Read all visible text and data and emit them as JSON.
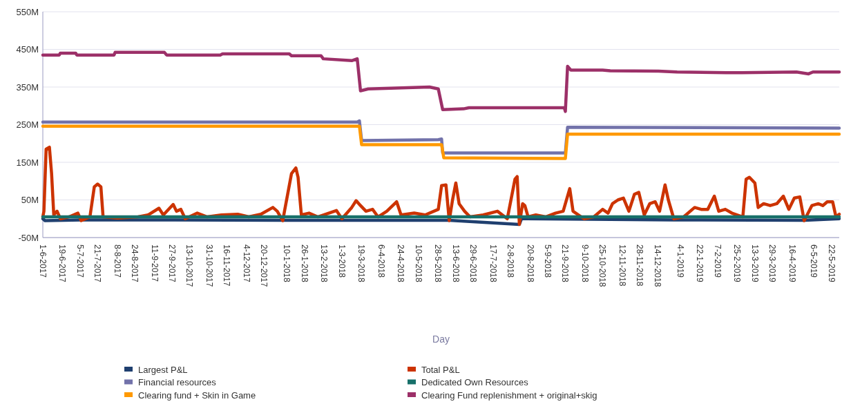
{
  "chart_data": {
    "type": "line",
    "xlabel": "Day",
    "grid": "y",
    "legend": "bottom",
    "line_style": "solid",
    "marker": "none",
    "xlim": [
      "2017-06-01",
      "2019-05-29"
    ],
    "ylim": [
      -50,
      550
    ],
    "yticks": [
      {
        "value": -50,
        "label": "-50M"
      },
      {
        "value": 50,
        "label": "50M"
      },
      {
        "value": 150,
        "label": "150M"
      },
      {
        "value": 250,
        "label": "250M"
      },
      {
        "value": 350,
        "label": "350M"
      },
      {
        "value": 450,
        "label": "450M"
      },
      {
        "value": 550,
        "label": "550M"
      }
    ],
    "xticks": [
      {
        "value": "2017-06-01",
        "label": "1-6-2017"
      },
      {
        "value": "2017-06-19",
        "label": "19-6-2017"
      },
      {
        "value": "2017-07-05",
        "label": "5-7-2017"
      },
      {
        "value": "2017-07-21",
        "label": "21-7-2017"
      },
      {
        "value": "2017-08-08",
        "label": "8-8-2017"
      },
      {
        "value": "2017-08-24",
        "label": "24-8-2017"
      },
      {
        "value": "2017-09-11",
        "label": "11-9-2017"
      },
      {
        "value": "2017-09-27",
        "label": "27-9-2017"
      },
      {
        "value": "2017-10-13",
        "label": "13-10-2017"
      },
      {
        "value": "2017-10-31",
        "label": "31-10-2017"
      },
      {
        "value": "2017-11-16",
        "label": "16-11-2017"
      },
      {
        "value": "2017-12-04",
        "label": "4-12-2017"
      },
      {
        "value": "2017-12-20",
        "label": "20-12-2017"
      },
      {
        "value": "2018-01-10",
        "label": "10-1-2018"
      },
      {
        "value": "2018-01-26",
        "label": "26-1-2018"
      },
      {
        "value": "2018-02-13",
        "label": "13-2-2018"
      },
      {
        "value": "2018-03-01",
        "label": "1-3-2018"
      },
      {
        "value": "2018-03-19",
        "label": "19-3-2018"
      },
      {
        "value": "2018-04-06",
        "label": "6-4-2018"
      },
      {
        "value": "2018-04-24",
        "label": "24-4-2018"
      },
      {
        "value": "2018-05-10",
        "label": "10-5-2018"
      },
      {
        "value": "2018-05-28",
        "label": "28-5-2018"
      },
      {
        "value": "2018-06-13",
        "label": "13-6-2018"
      },
      {
        "value": "2018-06-29",
        "label": "29-6-2018"
      },
      {
        "value": "2018-07-17",
        "label": "17-7-2018"
      },
      {
        "value": "2018-08-02",
        "label": "2-8-2018"
      },
      {
        "value": "2018-08-20",
        "label": "20-8-2018"
      },
      {
        "value": "2018-09-05",
        "label": "5-9-2018"
      },
      {
        "value": "2018-09-21",
        "label": "21-9-2018"
      },
      {
        "value": "2018-10-09",
        "label": "9-10-2018"
      },
      {
        "value": "2018-10-25",
        "label": "25-10-2018"
      },
      {
        "value": "2018-11-12",
        "label": "12-11-2018"
      },
      {
        "value": "2018-11-28",
        "label": "28-11-2018"
      },
      {
        "value": "2018-12-14",
        "label": "14-12-2018"
      },
      {
        "value": "2019-01-04",
        "label": "4-1-2019"
      },
      {
        "value": "2019-01-22",
        "label": "22-1-2019"
      },
      {
        "value": "2019-02-07",
        "label": "7-2-2019"
      },
      {
        "value": "2019-02-25",
        "label": "25-2-2019"
      },
      {
        "value": "2019-03-13",
        "label": "13-3-2019"
      },
      {
        "value": "2019-03-29",
        "label": "29-3-2019"
      },
      {
        "value": "2019-04-16",
        "label": "16-4-2019"
      },
      {
        "value": "2019-05-06",
        "label": "6-5-2019"
      },
      {
        "value": "2019-05-22",
        "label": "22-5-2019"
      }
    ],
    "series": [
      {
        "name": "Largest P&L",
        "color": "#1f3f6f",
        "x": [
          "2017-06-01",
          "2017-06-03",
          "2017-07-06",
          "2017-09-30",
          "2018-01-06",
          "2018-06-07",
          "2018-08-10",
          "2018-08-12",
          "2018-12-29",
          "2019-04-27",
          "2019-05-29"
        ],
        "values": [
          0,
          -5,
          -3,
          -3,
          -4,
          -4,
          -15,
          0,
          -3,
          -4,
          0
        ]
      },
      {
        "name": "Total P&L",
        "color": "#cc3300",
        "x": [
          "2017-06-01",
          "2017-06-02",
          "2017-06-04",
          "2017-06-07",
          "2017-06-09",
          "2017-06-11",
          "2017-06-14",
          "2017-06-17",
          "2017-06-25",
          "2017-07-03",
          "2017-07-06",
          "2017-07-14",
          "2017-07-18",
          "2017-07-21",
          "2017-07-24",
          "2017-07-26",
          "2017-08-08",
          "2017-08-27",
          "2017-09-05",
          "2017-09-15",
          "2017-09-19",
          "2017-09-28",
          "2017-10-01",
          "2017-10-05",
          "2017-10-09",
          "2017-10-20",
          "2017-10-29",
          "2017-11-11",
          "2017-11-26",
          "2017-12-06",
          "2017-12-17",
          "2017-12-28",
          "2018-01-01",
          "2018-01-06",
          "2018-01-14",
          "2018-01-18",
          "2018-01-20",
          "2018-01-23",
          "2018-01-30",
          "2018-02-07",
          "2018-02-24",
          "2018-03-01",
          "2018-03-10",
          "2018-03-14",
          "2018-03-18",
          "2018-03-23",
          "2018-03-29",
          "2018-04-03",
          "2018-04-11",
          "2018-04-20",
          "2018-04-24",
          "2018-05-06",
          "2018-05-16",
          "2018-05-28",
          "2018-05-31",
          "2018-06-04",
          "2018-06-07",
          "2018-06-10",
          "2018-06-13",
          "2018-06-16",
          "2018-06-21",
          "2018-06-26",
          "2018-07-08",
          "2018-07-21",
          "2018-07-30",
          "2018-08-06",
          "2018-08-08",
          "2018-08-10",
          "2018-08-13",
          "2018-08-15",
          "2018-08-18",
          "2018-08-25",
          "2018-09-03",
          "2018-09-12",
          "2018-09-19",
          "2018-09-25",
          "2018-09-28",
          "2018-10-08",
          "2018-10-17",
          "2018-10-25",
          "2018-10-30",
          "2018-11-03",
          "2018-11-08",
          "2018-11-13",
          "2018-11-18",
          "2018-11-23",
          "2018-11-27",
          "2018-12-02",
          "2018-12-07",
          "2018-12-12",
          "2018-12-16",
          "2018-12-21",
          "2018-12-24",
          "2018-12-29",
          "2019-01-07",
          "2019-01-17",
          "2019-01-23",
          "2019-01-29",
          "2019-02-04",
          "2019-02-08",
          "2019-02-14",
          "2019-02-20",
          "2019-03-02",
          "2019-03-05",
          "2019-03-08",
          "2019-03-13",
          "2019-03-16",
          "2019-03-21",
          "2019-03-27",
          "2019-04-02",
          "2019-04-08",
          "2019-04-13",
          "2019-04-18",
          "2019-04-23",
          "2019-04-27",
          "2019-05-04",
          "2019-05-10",
          "2019-05-14",
          "2019-05-18",
          "2019-05-23",
          "2019-05-26",
          "2019-05-29"
        ],
        "values": [
          5,
          20,
          185,
          190,
          120,
          10,
          20,
          0,
          5,
          15,
          -5,
          5,
          85,
          92,
          85,
          5,
          2,
          5,
          10,
          28,
          10,
          38,
          20,
          25,
          0,
          15,
          5,
          10,
          12,
          5,
          12,
          30,
          20,
          -5,
          120,
          135,
          110,
          10,
          15,
          5,
          22,
          0,
          30,
          48,
          35,
          20,
          25,
          5,
          20,
          45,
          10,
          15,
          10,
          25,
          88,
          90,
          -5,
          50,
          95,
          40,
          20,
          5,
          10,
          20,
          0,
          105,
          112,
          -15,
          40,
          35,
          5,
          10,
          5,
          15,
          20,
          80,
          20,
          0,
          5,
          25,
          15,
          40,
          50,
          55,
          20,
          65,
          70,
          10,
          40,
          45,
          20,
          90,
          50,
          0,
          5,
          30,
          25,
          25,
          60,
          20,
          25,
          15,
          5,
          105,
          110,
          95,
          30,
          40,
          35,
          40,
          60,
          25,
          55,
          58,
          -5,
          35,
          40,
          35,
          45,
          45,
          5,
          12
        ]
      },
      {
        "name": "Financial resources",
        "color": "#7272aa",
        "x": [
          "2017-06-01",
          "2018-03-15",
          "2018-03-17",
          "2018-03-19",
          "2018-05-28",
          "2018-05-31",
          "2018-06-01",
          "2018-09-21",
          "2018-09-23",
          "2019-05-29"
        ],
        "values": [
          257,
          257,
          260,
          208,
          210,
          212,
          175,
          175,
          243,
          241
        ]
      },
      {
        "name": "Dedicated Own Resources",
        "color": "#17706a",
        "x": [
          "2017-06-01",
          "2017-12-01",
          "2018-06-01",
          "2018-12-01",
          "2019-05-29"
        ],
        "values": [
          5,
          5,
          5,
          5,
          5
        ]
      },
      {
        "name": "Clearing fund + Skin in Game",
        "color": "#ff9900",
        "x": [
          "2017-06-01",
          "2018-03-17",
          "2018-03-19",
          "2018-05-31",
          "2018-06-02",
          "2018-09-21",
          "2018-09-23",
          "2019-05-29"
        ],
        "values": [
          246,
          246,
          197,
          197,
          162,
          160,
          225,
          225
        ]
      },
      {
        "name": "Clearing Fund replenishment + original+skig",
        "color": "#9c3068",
        "x": [
          "2017-06-01",
          "2017-06-16",
          "2017-06-17",
          "2017-07-01",
          "2017-07-02",
          "2017-08-05",
          "2017-08-06",
          "2017-09-20",
          "2017-09-22",
          "2017-11-10",
          "2017-11-12",
          "2018-01-12",
          "2018-01-14",
          "2018-02-10",
          "2018-02-12",
          "2018-03-10",
          "2018-03-15",
          "2018-03-18",
          "2018-03-25",
          "2018-05-20",
          "2018-05-28",
          "2018-06-01",
          "2018-06-20",
          "2018-06-25",
          "2018-09-20",
          "2018-09-21",
          "2018-09-23",
          "2018-09-26",
          "2018-10-25",
          "2018-11-01",
          "2018-12-15",
          "2019-01-01",
          "2019-02-15",
          "2019-03-01",
          "2019-04-20",
          "2019-05-01",
          "2019-05-05",
          "2019-05-29"
        ],
        "values": [
          435,
          435,
          440,
          440,
          435,
          435,
          442,
          442,
          435,
          435,
          438,
          438,
          433,
          433,
          425,
          420,
          425,
          340,
          345,
          350,
          345,
          290,
          292,
          295,
          295,
          285,
          405,
          395,
          395,
          393,
          392,
          390,
          388,
          388,
          390,
          385,
          390,
          390
        ]
      }
    ]
  }
}
